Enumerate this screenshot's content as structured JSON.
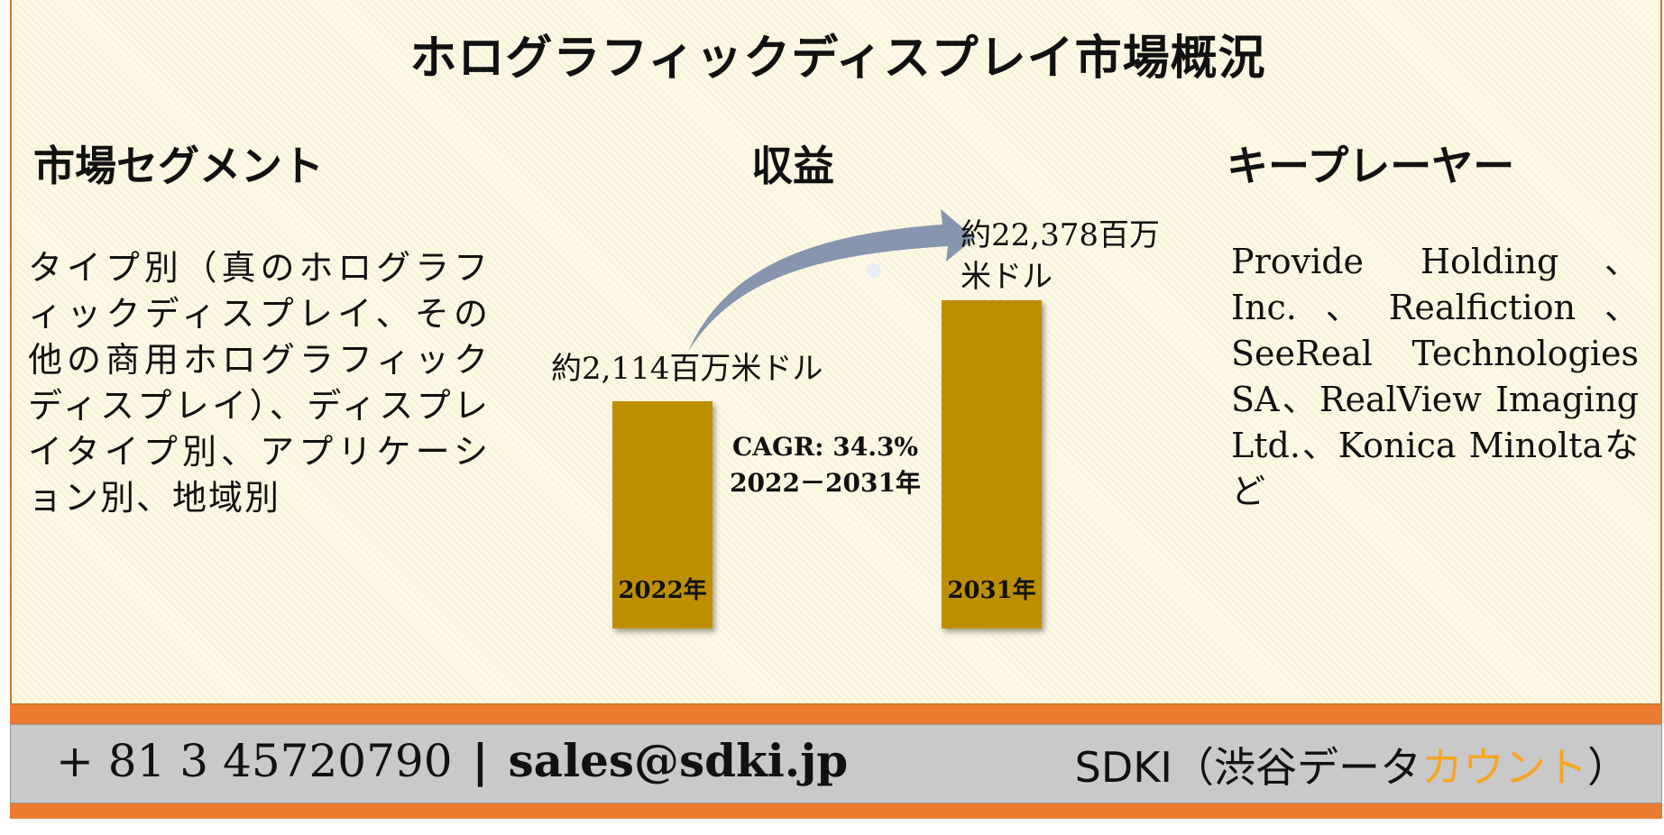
{
  "title": "ホログラフィックディスプレイ市場概況",
  "sections": {
    "segment": {
      "heading": "市場セグメント",
      "text": "タイプ別（真のホログラフィックディスプレイ、その他の商用ホログラフィックディスプレイ）、ディスプレイタイプ別、アプリケーション別、地域別"
    },
    "revenue": {
      "heading": "収益"
    },
    "key_players": {
      "heading": "キープレーヤー",
      "text": "Provide Holding、Inc.、Realfiction、SeeReal Technologies SA、RealView Imaging Ltd.、Konica Minoltaなど"
    }
  },
  "chart_data": {
    "type": "bar",
    "categories": [
      "2022年",
      "2031年"
    ],
    "values": [
      2114,
      22378
    ],
    "value_labels": [
      "約2,114百万米ドル",
      "約22,378百万米ドル"
    ],
    "value_label_lines": [
      [
        "約2,114百万米ドル"
      ],
      [
        "約22,378百万",
        "米ドル"
      ]
    ],
    "annotation": [
      "CAGR: 34.3%",
      "2022－2031年"
    ],
    "bar_color": "#bd8f00",
    "arrow_color": "#8796ae",
    "note": "bar heights in original are not drawn to scale"
  },
  "footer": {
    "phone": "+ 81 3 45720790",
    "separator": "|",
    "email": "sales@sdki.jp",
    "brand_prefix": "SDKI（渋谷データ",
    "brand_accent": "カウント",
    "brand_suffix": "）",
    "accent_color": "#f5a623"
  }
}
